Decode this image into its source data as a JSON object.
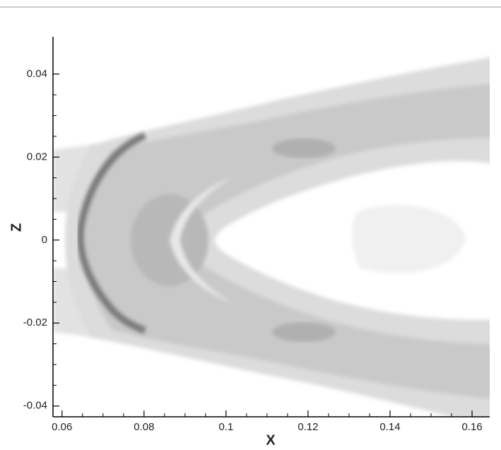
{
  "chart_data": {
    "type": "contour",
    "x_label": "X",
    "y_label": "Z",
    "xlim": [
      0.0578,
      0.1643
    ],
    "ylim": [
      -0.0426,
      0.049
    ],
    "xticks": [
      0.06,
      0.08,
      0.1,
      0.12,
      0.14,
      0.16
    ],
    "yticks": [
      -0.04,
      -0.02,
      0,
      0.02,
      0.04
    ]
  }
}
